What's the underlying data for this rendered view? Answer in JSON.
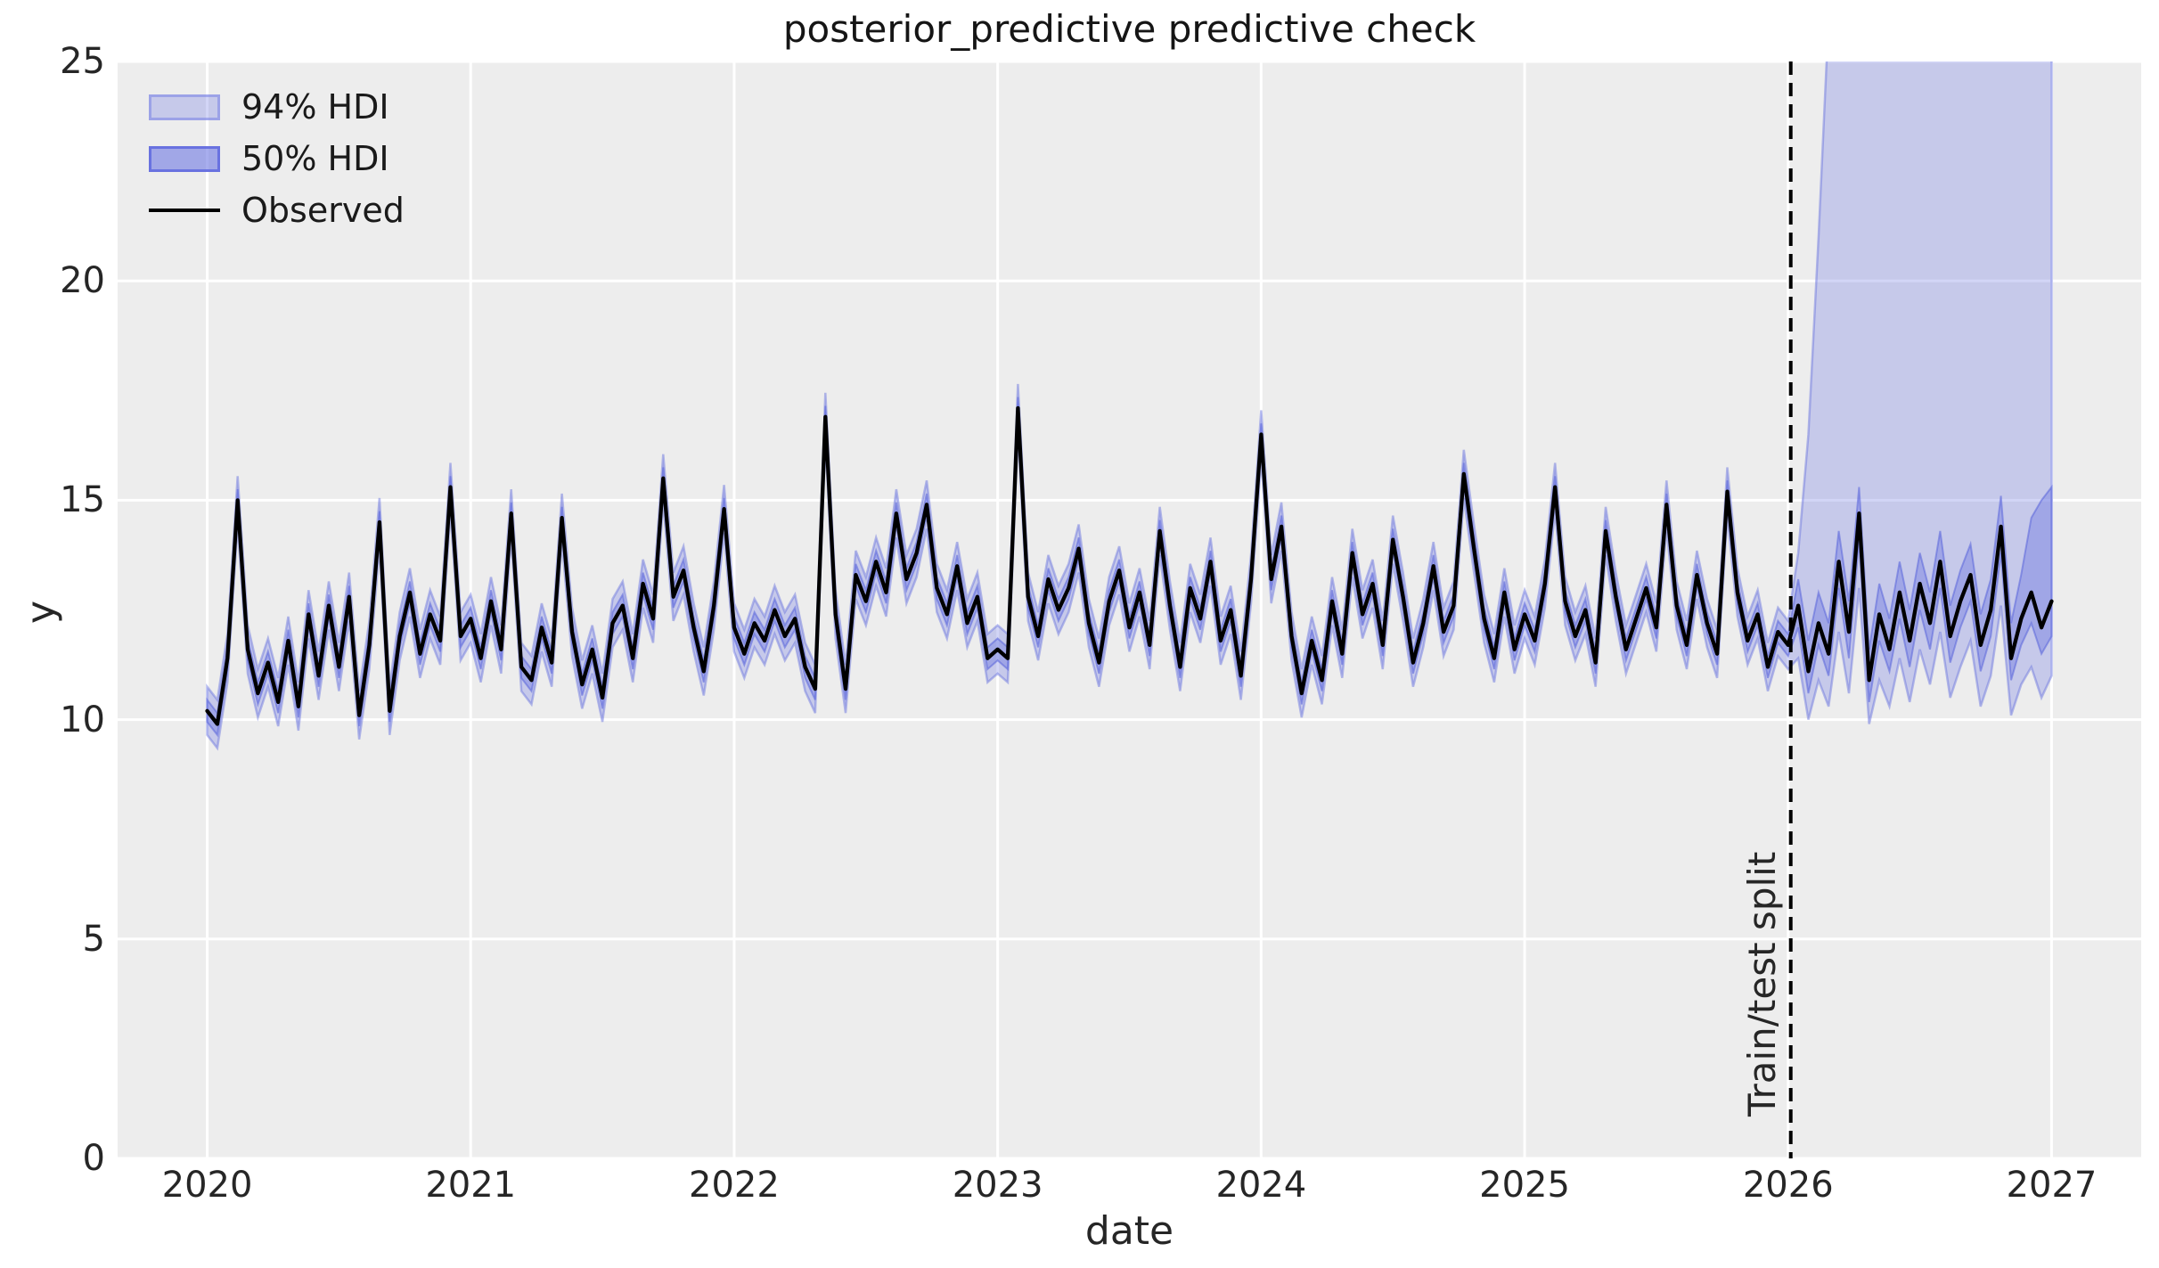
{
  "chart_data": {
    "type": "line",
    "title": "posterior_predictive predictive check",
    "xlabel": "date",
    "ylabel": "y",
    "x_ticks": [
      2020,
      2021,
      2022,
      2023,
      2024,
      2025,
      2026,
      2027
    ],
    "y_ticks": [
      0,
      5,
      10,
      15,
      20,
      25
    ],
    "x_range": [
      2019.66,
      2027.34
    ],
    "y_range": [
      0,
      25
    ],
    "grid": "white-on-gray",
    "legend": [
      "94% HDI",
      "50% HDI",
      "Observed"
    ],
    "legend_position": "upper left",
    "split": {
      "x": 2026.01,
      "label": "Train/test split"
    },
    "colors": {
      "plot_bg": "#ededed",
      "grid": "#ffffff",
      "hdi_base": "#727ce3",
      "observed": "#000000",
      "split_line": "#000000",
      "text": "#262626"
    },
    "series": {
      "x_start": 2020.0,
      "x_step_years": 0.0384615,
      "n_train": 157,
      "observed": [
        10.2,
        9.9,
        11.4,
        15.0,
        11.6,
        10.6,
        11.3,
        10.4,
        11.8,
        10.3,
        12.4,
        11.0,
        12.6,
        11.2,
        12.8,
        10.1,
        11.7,
        14.5,
        10.2,
        11.9,
        12.9,
        11.5,
        12.4,
        11.8,
        15.3,
        11.9,
        12.3,
        11.4,
        12.7,
        11.6,
        14.7,
        11.2,
        10.9,
        12.1,
        11.3,
        14.6,
        12.0,
        10.8,
        11.6,
        10.5,
        12.2,
        12.6,
        11.4,
        13.1,
        12.3,
        15.5,
        12.8,
        13.4,
        12.1,
        11.1,
        12.6,
        14.8,
        12.1,
        11.5,
        12.2,
        11.8,
        12.5,
        11.9,
        12.3,
        11.2,
        10.7,
        16.9,
        12.4,
        10.7,
        13.3,
        12.7,
        13.6,
        12.9,
        14.7,
        13.2,
        13.8,
        14.9,
        13.0,
        12.4,
        13.5,
        12.2,
        12.8,
        11.4,
        11.6,
        11.4,
        17.1,
        12.8,
        11.9,
        13.2,
        12.5,
        13.0,
        13.9,
        12.2,
        11.3,
        12.7,
        13.4,
        12.1,
        12.9,
        11.7,
        14.3,
        12.6,
        11.2,
        13.0,
        12.3,
        13.6,
        11.8,
        12.5,
        11.0,
        13.2,
        16.5,
        13.2,
        14.4,
        11.9,
        10.6,
        11.8,
        10.9,
        12.7,
        11.5,
        13.8,
        12.4,
        13.1,
        11.7,
        14.1,
        12.8,
        11.3,
        12.2,
        13.5,
        12.0,
        12.6,
        15.6,
        13.9,
        12.3,
        11.4,
        12.9,
        11.6,
        12.4,
        11.8,
        13.1,
        15.3,
        12.7,
        11.9,
        12.5,
        11.3,
        14.3,
        12.8,
        11.6,
        12.3,
        13.0,
        12.1,
        14.9,
        12.6,
        11.7,
        13.3,
        12.2,
        11.5,
        15.2,
        12.9,
        11.8,
        12.4,
        11.2,
        12.0,
        11.7,
        12.6,
        11.1,
        12.2,
        11.5,
        13.6,
        12.0,
        14.7,
        10.9,
        12.4,
        11.6,
        12.9,
        11.8,
        13.1,
        12.2,
        13.6,
        11.9,
        12.7,
        13.3,
        11.7,
        12.5,
        14.4,
        11.4,
        12.3,
        12.9,
        12.1,
        12.7
      ],
      "hdi_train_halfwidth_94": 0.55,
      "hdi_train_halfwidth_50": 0.25,
      "hdi_test": {
        "hi94": [
          13.8,
          16.5,
          21,
          26,
          30,
          32,
          33,
          34,
          34,
          34,
          34,
          34,
          34,
          34,
          34,
          34,
          34,
          34,
          33,
          33,
          32,
          32,
          31,
          30,
          29,
          28
        ],
        "lo94": [
          11.4,
          10.0,
          10.9,
          10.3,
          12.0,
          10.6,
          13.0,
          9.9,
          10.9,
          10.3,
          11.4,
          10.4,
          11.6,
          10.8,
          12.0,
          10.5,
          11.2,
          11.8,
          10.3,
          11.0,
          12.6,
          10.1,
          10.8,
          11.2,
          10.5,
          11.0
        ],
        "hi50": [
          13.2,
          11.8,
          12.9,
          12.2,
          14.3,
          12.7,
          15.3,
          11.6,
          13.1,
          12.3,
          13.6,
          12.5,
          13.8,
          12.9,
          14.3,
          12.6,
          13.4,
          14.0,
          12.4,
          13.2,
          15.1,
          12.2,
          13.3,
          14.6,
          15.0,
          15.3
        ],
        "lo50": [
          12.1,
          10.6,
          11.7,
          11.0,
          13.0,
          11.4,
          14.1,
          10.4,
          11.8,
          11.1,
          12.3,
          11.2,
          12.5,
          11.6,
          13.0,
          11.3,
          12.1,
          12.7,
          11.1,
          11.9,
          13.8,
          10.9,
          11.7,
          12.2,
          11.5,
          11.9
        ]
      }
    }
  }
}
